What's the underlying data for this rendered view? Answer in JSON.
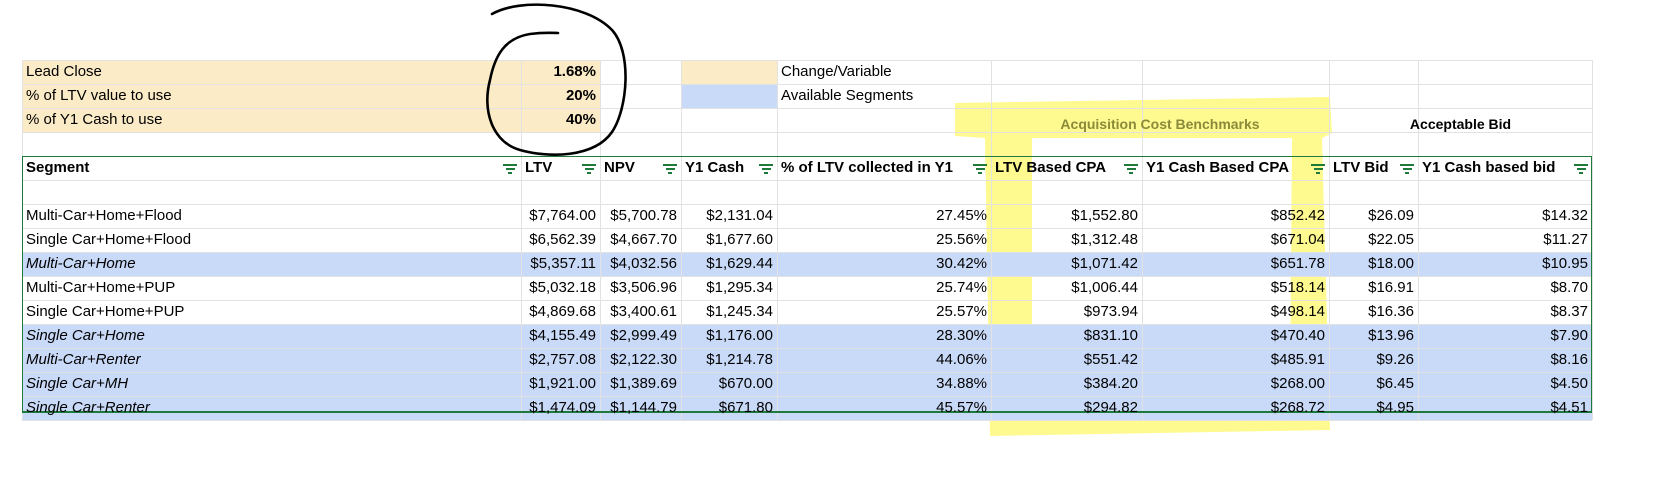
{
  "params": [
    {
      "label": "Lead Close",
      "value": "1.68%"
    },
    {
      "label": "% of LTV value to use",
      "value": "20%"
    },
    {
      "label": "% of Y1 Cash to use",
      "value": "40%"
    }
  ],
  "legend": {
    "change_variable": "Change/Variable",
    "available_segments": "Available Segments",
    "change_color": "#fbebc6",
    "segment_color": "#c9daf8"
  },
  "section_headers": {
    "acquisition": "Acquisition Cost Benchmarks",
    "acceptable": "Acceptable Bid"
  },
  "table": {
    "columns": [
      "Segment",
      "LTV",
      "NPV",
      "Y1 Cash",
      "% of LTV collected in Y1",
      "LTV Based CPA",
      "Y1 Cash Based CPA",
      "LTV Bid",
      "Y1 Cash based bid"
    ],
    "rows": [
      {
        "cells": [
          "Multi-Car+Home+Flood",
          "$7,764.00",
          "$5,700.78",
          "$2,131.04",
          "27.45%",
          "$1,552.80",
          "$852.42",
          "$26.09",
          "$14.32"
        ],
        "highlight": false
      },
      {
        "cells": [
          "Single Car+Home+Flood",
          "$6,562.39",
          "$4,667.70",
          "$1,677.60",
          "25.56%",
          "$1,312.48",
          "$671.04",
          "$22.05",
          "$11.27"
        ],
        "highlight": false
      },
      {
        "cells": [
          "Multi-Car+Home",
          "$5,357.11",
          "$4,032.56",
          "$1,629.44",
          "30.42%",
          "$1,071.42",
          "$651.78",
          "$18.00",
          "$10.95"
        ],
        "highlight": true
      },
      {
        "cells": [
          "Multi-Car+Home+PUP",
          "$5,032.18",
          "$3,506.96",
          "$1,295.34",
          "25.74%",
          "$1,006.44",
          "$518.14",
          "$16.91",
          "$8.70"
        ],
        "highlight": false
      },
      {
        "cells": [
          "Single Car+Home+PUP",
          "$4,869.68",
          "$3,400.61",
          "$1,245.34",
          "25.57%",
          "$973.94",
          "$498.14",
          "$16.36",
          "$8.37"
        ],
        "highlight": false
      },
      {
        "cells": [
          "Single Car+Home",
          "$4,155.49",
          "$2,999.49",
          "$1,176.00",
          "28.30%",
          "$831.10",
          "$470.40",
          "$13.96",
          "$7.90"
        ],
        "highlight": true
      },
      {
        "cells": [
          "Multi-Car+Renter",
          "$2,757.08",
          "$2,122.30",
          "$1,214.78",
          "44.06%",
          "$551.42",
          "$485.91",
          "$9.26",
          "$8.16"
        ],
        "highlight": true
      },
      {
        "cells": [
          "Single Car+MH",
          "$1,921.00",
          "$1,389.69",
          "$670.00",
          "34.88%",
          "$384.20",
          "$268.00",
          "$6.45",
          "$4.50"
        ],
        "highlight": true
      },
      {
        "cells": [
          "Single Car+Renter",
          "$1,474.09",
          "$1,144.79",
          "$671.80",
          "45.57%",
          "$294.82",
          "$268.72",
          "$4.95",
          "$4.51"
        ],
        "highlight": true
      }
    ]
  },
  "annotations": {
    "circle_color": "#000000",
    "highlighter_color": "#fff86a"
  }
}
